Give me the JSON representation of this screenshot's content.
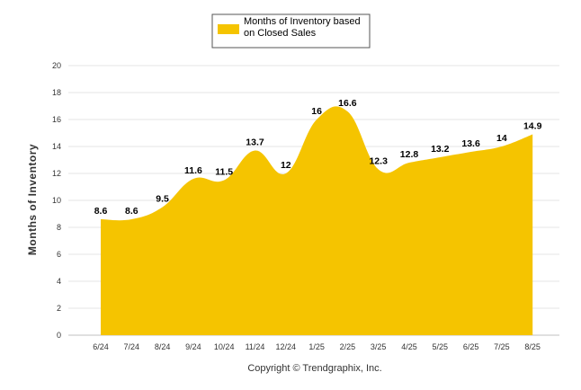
{
  "chart_data": {
    "type": "area",
    "categories": [
      "6/24",
      "7/24",
      "8/24",
      "9/24",
      "10/24",
      "11/24",
      "12/24",
      "1/25",
      "2/25",
      "3/25",
      "4/25",
      "5/25",
      "6/25",
      "7/25",
      "8/25"
    ],
    "series": [
      {
        "name": "Months of Inventory based on Closed Sales",
        "values": [
          8.6,
          8.6,
          9.5,
          11.6,
          11.5,
          13.7,
          12,
          16,
          16.6,
          12.3,
          12.8,
          13.2,
          13.6,
          14,
          14.9
        ]
      }
    ],
    "data_labels": [
      "8.6",
      "8.6",
      "9.5",
      "11.6",
      "11.5",
      "13.7",
      "12",
      "16",
      "16.6",
      "12.3",
      "12.8",
      "13.2",
      "13.6",
      "14",
      "14.9"
    ],
    "ylabel": "Months of Inventory",
    "xlabel": "",
    "ylim": [
      0,
      20
    ],
    "yticks": [
      "0",
      "2",
      "4",
      "6",
      "8",
      "10",
      "12",
      "14",
      "16",
      "18",
      "20"
    ],
    "grid": true,
    "legend_position": "top-center",
    "legend_lines": [
      "Months of Inventory based",
      "on Closed Sales"
    ],
    "colors": {
      "area": "#F5C400",
      "grid": "#E6E6E6"
    },
    "credit": "Copyright © Trendgraphix, Inc."
  }
}
